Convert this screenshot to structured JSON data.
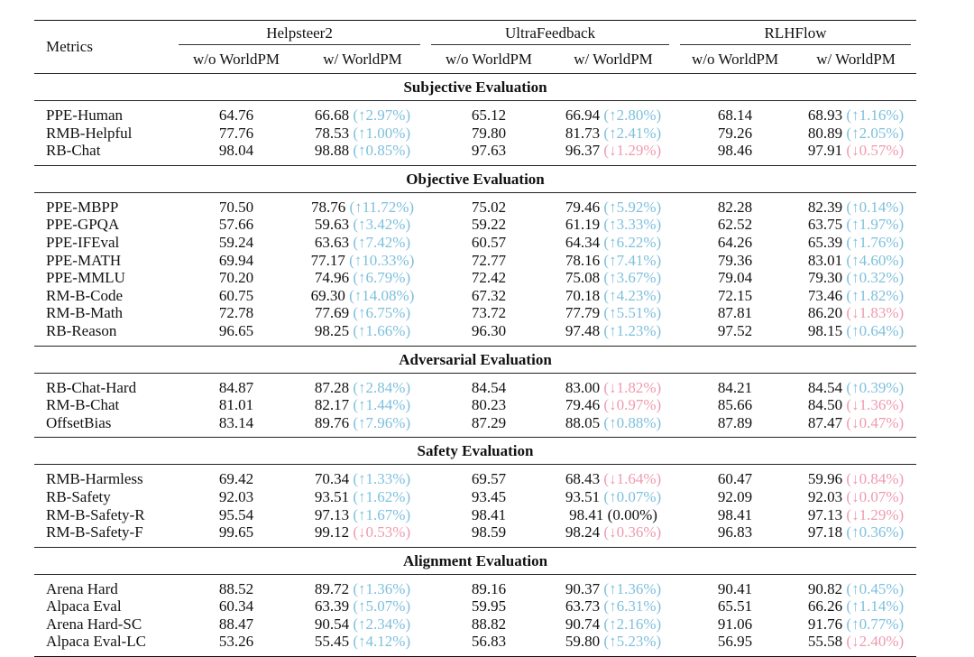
{
  "header": {
    "metrics_label": "Metrics",
    "groups": [
      "Helpsteer2",
      "UltraFeedback",
      "RLHFlow"
    ],
    "sub_without": "w/o WorldPM",
    "sub_with": "w/ WorldPM"
  },
  "sections": [
    {
      "title": "Subjective Evaluation",
      "rows": [
        {
          "metric": "PPE-Human",
          "cells": [
            [
              "64.76",
              "66.68",
              "(↑2.97%)",
              "up"
            ],
            [
              "65.12",
              "66.94",
              "(↑2.80%)",
              "up"
            ],
            [
              "68.14",
              "68.93",
              "(↑1.16%)",
              "up"
            ]
          ]
        },
        {
          "metric": "RMB-Helpful",
          "cells": [
            [
              "77.76",
              "78.53",
              "(↑1.00%)",
              "up"
            ],
            [
              "79.80",
              "81.73",
              "(↑2.41%)",
              "up"
            ],
            [
              "79.26",
              "80.89",
              "(↑2.05%)",
              "up"
            ]
          ]
        },
        {
          "metric": "RB-Chat",
          "cells": [
            [
              "98.04",
              "98.88",
              "(↑0.85%)",
              "up"
            ],
            [
              "97.63",
              "96.37",
              "(↓1.29%)",
              "down"
            ],
            [
              "98.46",
              "97.91",
              "(↓0.57%)",
              "down"
            ]
          ]
        }
      ]
    },
    {
      "title": "Objective Evaluation",
      "rows": [
        {
          "metric": "PPE-MBPP",
          "cells": [
            [
              "70.50",
              "78.76",
              "(↑11.72%)",
              "up"
            ],
            [
              "75.02",
              "79.46",
              "(↑5.92%)",
              "up"
            ],
            [
              "82.28",
              "82.39",
              "(↑0.14%)",
              "up"
            ]
          ]
        },
        {
          "metric": "PPE-GPQA",
          "cells": [
            [
              "57.66",
              "59.63",
              "(↑3.42%)",
              "up"
            ],
            [
              "59.22",
              "61.19",
              "(↑3.33%)",
              "up"
            ],
            [
              "62.52",
              "63.75",
              "(↑1.97%)",
              "up"
            ]
          ]
        },
        {
          "metric": "PPE-IFEval",
          "cells": [
            [
              "59.24",
              "63.63",
              "(↑7.42%)",
              "up"
            ],
            [
              "60.57",
              "64.34",
              "(↑6.22%)",
              "up"
            ],
            [
              "64.26",
              "65.39",
              "(↑1.76%)",
              "up"
            ]
          ]
        },
        {
          "metric": "PPE-MATH",
          "cells": [
            [
              "69.94",
              "77.17",
              "(↑10.33%)",
              "up"
            ],
            [
              "72.77",
              "78.16",
              "(↑7.41%)",
              "up"
            ],
            [
              "79.36",
              "83.01",
              "(↑4.60%)",
              "up"
            ]
          ]
        },
        {
          "metric": "PPE-MMLU",
          "cells": [
            [
              "70.20",
              "74.96",
              "(↑6.79%)",
              "up"
            ],
            [
              "72.42",
              "75.08",
              "(↑3.67%)",
              "up"
            ],
            [
              "79.04",
              "79.30",
              "(↑0.32%)",
              "up"
            ]
          ]
        },
        {
          "metric": "RM-B-Code",
          "cells": [
            [
              "60.75",
              "69.30",
              "(↑14.08%)",
              "up"
            ],
            [
              "67.32",
              "70.18",
              "(↑4.23%)",
              "up"
            ],
            [
              "72.15",
              "73.46",
              "(↑1.82%)",
              "up"
            ]
          ]
        },
        {
          "metric": "RM-B-Math",
          "cells": [
            [
              "72.78",
              "77.69",
              "(↑6.75%)",
              "up"
            ],
            [
              "73.72",
              "77.79",
              "(↑5.51%)",
              "up"
            ],
            [
              "87.81",
              "86.20",
              "(↓1.83%)",
              "down"
            ]
          ]
        },
        {
          "metric": "RB-Reason",
          "cells": [
            [
              "96.65",
              "98.25",
              "(↑1.66%)",
              "up"
            ],
            [
              "96.30",
              "97.48",
              "(↑1.23%)",
              "up"
            ],
            [
              "97.52",
              "98.15",
              "(↑0.64%)",
              "up"
            ]
          ]
        }
      ]
    },
    {
      "title": "Adversarial Evaluation",
      "rows": [
        {
          "metric": "RB-Chat-Hard",
          "cells": [
            [
              "84.87",
              "87.28",
              "(↑2.84%)",
              "up"
            ],
            [
              "84.54",
              "83.00",
              "(↓1.82%)",
              "down"
            ],
            [
              "84.21",
              "84.54",
              "(↑0.39%)",
              "up"
            ]
          ]
        },
        {
          "metric": "RM-B-Chat",
          "cells": [
            [
              "81.01",
              "82.17",
              "(↑1.44%)",
              "up"
            ],
            [
              "80.23",
              "79.46",
              "(↓0.97%)",
              "down"
            ],
            [
              "85.66",
              "84.50",
              "(↓1.36%)",
              "down"
            ]
          ]
        },
        {
          "metric": "OffsetBias",
          "cells": [
            [
              "83.14",
              "89.76",
              "(↑7.96%)",
              "up"
            ],
            [
              "87.29",
              "88.05",
              "(↑0.88%)",
              "up"
            ],
            [
              "87.89",
              "87.47",
              "(↓0.47%)",
              "down"
            ]
          ]
        }
      ]
    },
    {
      "title": "Safety Evaluation",
      "rows": [
        {
          "metric": "RMB-Harmless",
          "cells": [
            [
              "69.42",
              "70.34",
              "(↑1.33%)",
              "up"
            ],
            [
              "69.57",
              "68.43",
              "(↓1.64%)",
              "down"
            ],
            [
              "60.47",
              "59.96",
              "(↓0.84%)",
              "down"
            ]
          ]
        },
        {
          "metric": "RB-Safety",
          "cells": [
            [
              "92.03",
              "93.51",
              "(↑1.62%)",
              "up"
            ],
            [
              "93.45",
              "93.51",
              "(↑0.07%)",
              "up"
            ],
            [
              "92.09",
              "92.03",
              "(↓0.07%)",
              "down"
            ]
          ]
        },
        {
          "metric": "RM-B-Safety-R",
          "cells": [
            [
              "95.54",
              "97.13",
              "(↑1.67%)",
              "up"
            ],
            [
              "98.41",
              "98.41",
              "(0.00%)",
              "zero"
            ],
            [
              "98.41",
              "97.13",
              "(↓1.29%)",
              "down"
            ]
          ]
        },
        {
          "metric": "RM-B-Safety-F",
          "cells": [
            [
              "99.65",
              "99.12",
              "(↓0.53%)",
              "down"
            ],
            [
              "98.59",
              "98.24",
              "(↓0.36%)",
              "down"
            ],
            [
              "96.83",
              "97.18",
              "(↑0.36%)",
              "up"
            ]
          ]
        }
      ]
    },
    {
      "title": "Alignment Evaluation",
      "rows": [
        {
          "metric": "Arena Hard",
          "cells": [
            [
              "88.52",
              "89.72",
              "(↑1.36%)",
              "up"
            ],
            [
              "89.16",
              "90.37",
              "(↑1.36%)",
              "up"
            ],
            [
              "90.41",
              "90.82",
              "(↑0.45%)",
              "up"
            ]
          ]
        },
        {
          "metric": "Alpaca Eval",
          "cells": [
            [
              "60.34",
              "63.39",
              "(↑5.07%)",
              "up"
            ],
            [
              "59.95",
              "63.73",
              "(↑6.31%)",
              "up"
            ],
            [
              "65.51",
              "66.26",
              "(↑1.14%)",
              "up"
            ]
          ]
        },
        {
          "metric": "Arena Hard-SC",
          "cells": [
            [
              "88.47",
              "90.54",
              "(↑2.34%)",
              "up"
            ],
            [
              "88.82",
              "90.74",
              "(↑2.16%)",
              "up"
            ],
            [
              "91.06",
              "91.76",
              "(↑0.77%)",
              "up"
            ]
          ]
        },
        {
          "metric": "Alpaca Eval-LC",
          "cells": [
            [
              "53.26",
              "55.45",
              "(↑4.12%)",
              "up"
            ],
            [
              "56.83",
              "59.80",
              "(↑5.23%)",
              "up"
            ],
            [
              "56.95",
              "55.58",
              "(↓2.40%)",
              "down"
            ]
          ]
        }
      ]
    }
  ]
}
